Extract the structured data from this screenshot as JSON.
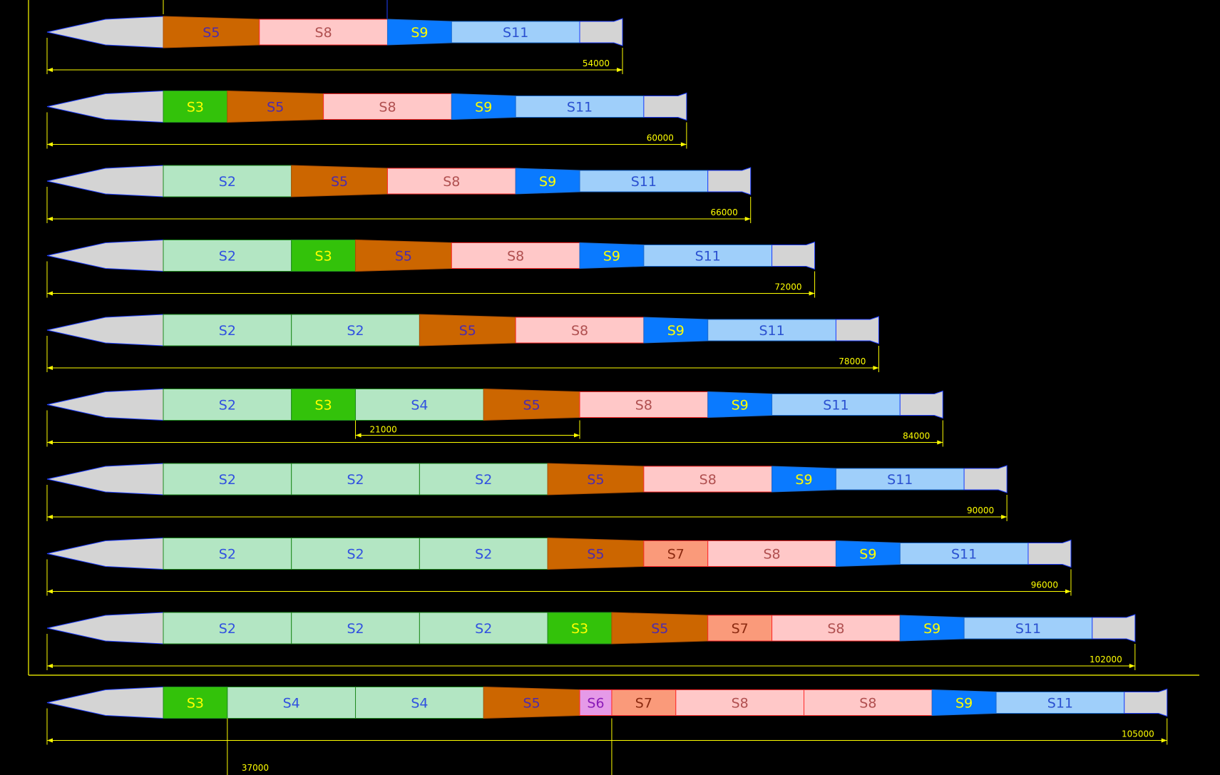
{
  "colors": {
    "background": "#000000",
    "frame": "#ffff00",
    "dimension": "#ffff00",
    "nose": "#d4d4d4",
    "tail": "#d4d4d4",
    "S2": "#b3e6c3",
    "S3": "#33c20a",
    "S4": "#b3e6c3",
    "S5": "#cc6600",
    "S6": "#e59ae8",
    "S7": "#fa9a7a",
    "S8": "#ffc8c8",
    "S9": "#0a7aff",
    "S11": "#9fcffa",
    "label_default": "#3050e0",
    "label_S3": "#ffff00",
    "label_S5": "#4b2bb0",
    "label_S6": "#8a1ab8",
    "label_S7": "#8b2a10",
    "label_S8": "#b05050",
    "label_S9": "#ffff00",
    "label_S11": "#2a50d0"
  },
  "diagram": {
    "rows": [
      {
        "segments": [
          "S5",
          "S8",
          "S9",
          "S11"
        ],
        "total": "54000"
      },
      {
        "segments": [
          "S3",
          "S5",
          "S8",
          "S9",
          "S11"
        ],
        "total": "60000"
      },
      {
        "segments": [
          "S2",
          "S5",
          "S8",
          "S9",
          "S11"
        ],
        "total": "66000"
      },
      {
        "segments": [
          "S2",
          "S3",
          "S5",
          "S8",
          "S9",
          "S11"
        ],
        "total": "72000"
      },
      {
        "segments": [
          "S2",
          "S2",
          "S5",
          "S8",
          "S9",
          "S11"
        ],
        "total": "78000"
      },
      {
        "segments": [
          "S2",
          "S3",
          "S4",
          "S5",
          "S8",
          "S9",
          "S11"
        ],
        "total": "84000",
        "sub_dimension": {
          "label": "21000",
          "from_segment": 2,
          "to_segment": 4
        }
      },
      {
        "segments": [
          "S2",
          "S2",
          "S2",
          "S5",
          "S8",
          "S9",
          "S11"
        ],
        "total": "90000"
      },
      {
        "segments": [
          "S2",
          "S2",
          "S2",
          "S5",
          "S7",
          "S8",
          "S9",
          "S11"
        ],
        "total": "96000"
      },
      {
        "segments": [
          "S2",
          "S2",
          "S2",
          "S3",
          "S5",
          "S7",
          "S8",
          "S9",
          "S11"
        ],
        "total": "102000"
      },
      {
        "segments": [
          "S3",
          "S4",
          "S4",
          "S5",
          "S6",
          "S7",
          "S8",
          "S8",
          "S9",
          "S11"
        ],
        "total": "105000",
        "sub_dimension": {
          "label": "37000",
          "from_segment": 1,
          "to_segment": 5
        }
      }
    ]
  }
}
